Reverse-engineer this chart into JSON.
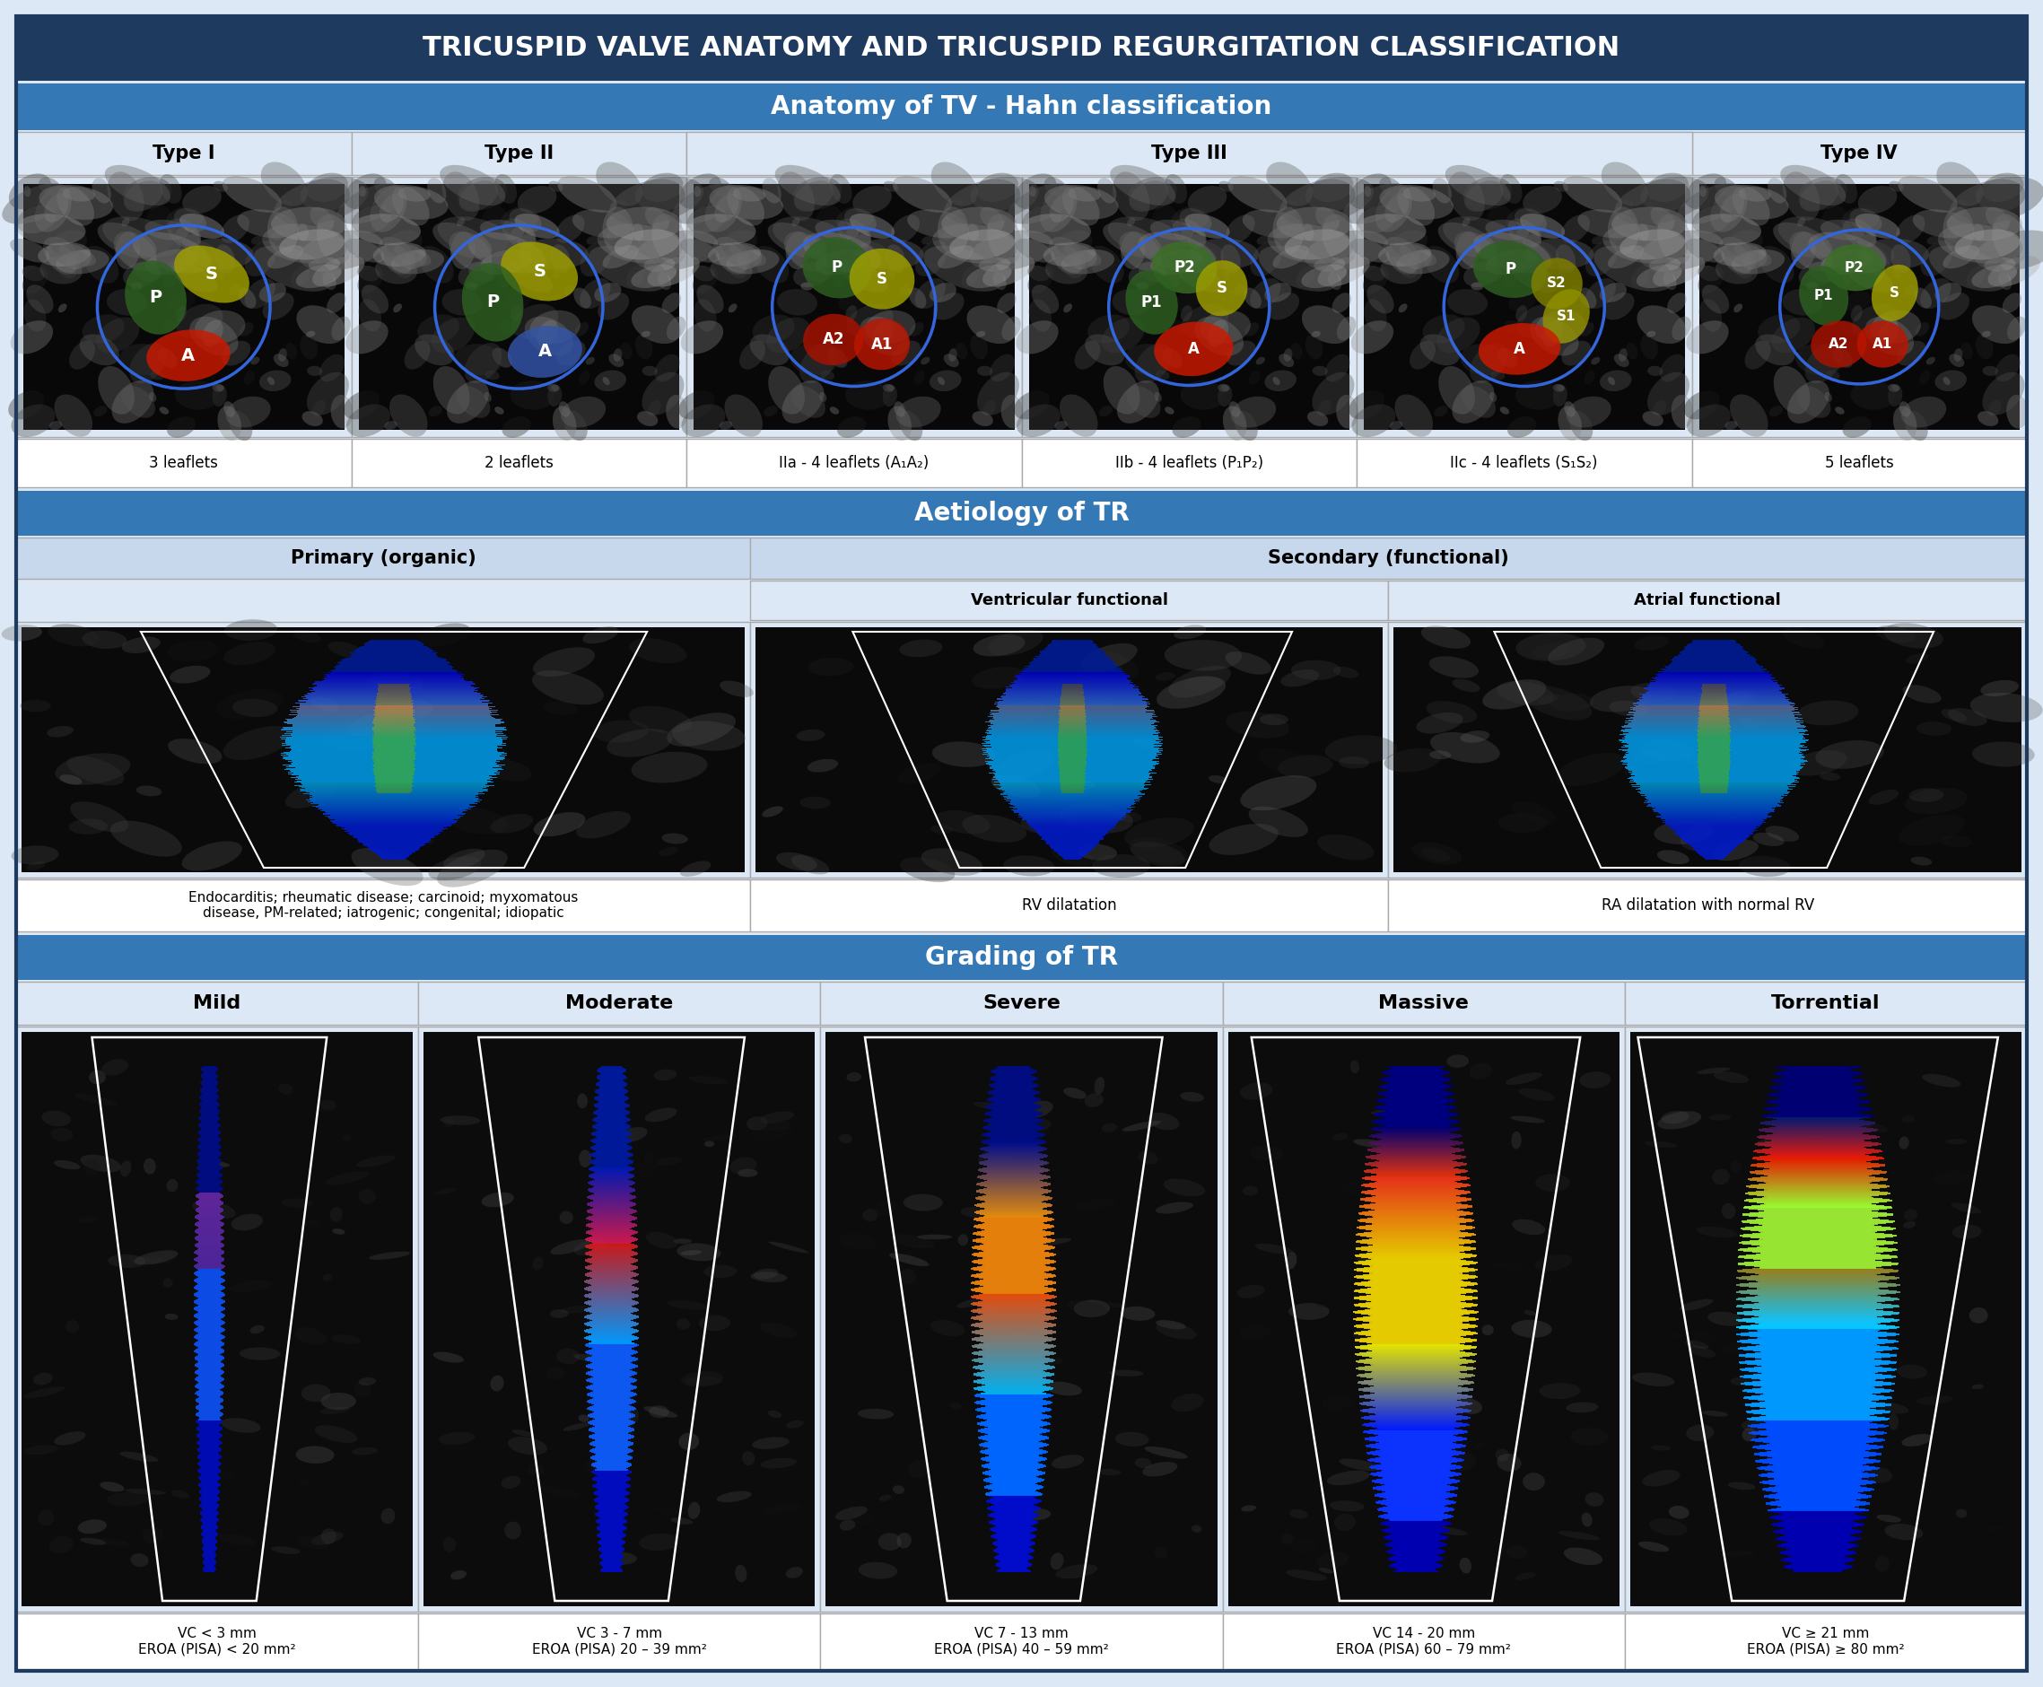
{
  "title": "TRICUSPID VALVE ANATOMY AND TRICUSPID REGURGITATION CLASSIFICATION",
  "title_bg": "#1e3a5f",
  "title_color": "#ffffff",
  "section1_title": "Anatomy of TV - Hahn classification",
  "section1_bg": "#3478b5",
  "section1_title_color": "#ffffff",
  "section2_title": "Aetiology of TR",
  "section2_bg": "#3478b5",
  "section2_title_color": "#ffffff",
  "section3_title": "Grading of TR",
  "section3_bg": "#3478b5",
  "section3_title_color": "#ffffff",
  "cell_bg_light": "#dce8f5",
  "cell_bg_mid": "#c8d8ec",
  "cell_bg_header": "#b8c8dd",
  "outer_bg": "#dce8f5",
  "inner_bg": "#ffffff",
  "type_headers": [
    "Type I",
    "Type II",
    "Type III",
    "Type IV"
  ],
  "type_labels": [
    "3 leaflets",
    "2 leaflets",
    "IIa - 4 leaflets (A₁A₂)",
    "IIb - 4 leaflets (P₁P₂)",
    "IIc - 4 leaflets (S₁S₂)",
    "5 leaflets"
  ],
  "aetiology_primary": "Primary (organic)",
  "aetiology_secondary": "Secondary (functional)",
  "aetiology_ventricular": "Ventricular functional",
  "aetiology_atrial": "Atrial functional",
  "primary_caption": "Endocarditis; rheumatic disease; carcinoid; myxomatous\ndisease, PM-related; iatrogenic; congenital; idiopatic",
  "rv_caption": "RV dilatation",
  "ra_caption": "RA dilatation with normal RV",
  "grading_labels": [
    "Mild",
    "Moderate",
    "Severe",
    "Massive",
    "Torrential"
  ],
  "grading_vc": [
    "VC < 3 mm",
    "VC 3 - 7 mm",
    "VC 7 - 13 mm",
    "VC 14 - 20 mm",
    "VC ≥ 21 mm"
  ],
  "grading_eroa": [
    "EROA (PISA) < 20 mm²",
    "EROA (PISA) 20 – 39 mm²",
    "EROA (PISA) 40 – 59 mm²",
    "EROA (PISA) 60 – 79 mm²",
    "EROA (PISA) ≥ 80 mm²"
  ]
}
